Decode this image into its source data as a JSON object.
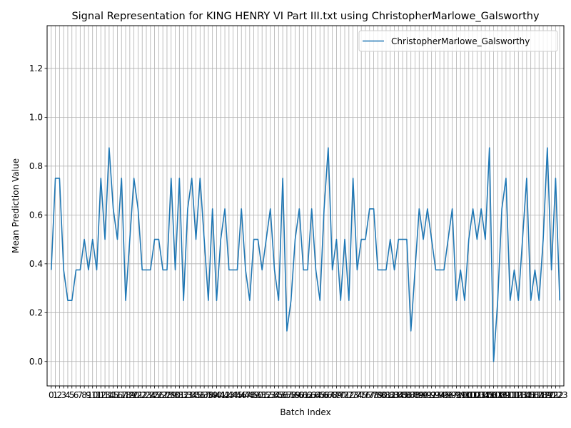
{
  "chart_data": {
    "type": "line",
    "title": "Signal Representation for KING HENRY VI Part III.txt using ChristopherMarlowe_Galsworthy",
    "xlabel": "Batch Index",
    "ylabel": "Mean Prediction Value",
    "xlim": [
      -1,
      124
    ],
    "ylim": [
      -0.1,
      1.375
    ],
    "yticks": [
      0.0,
      0.2,
      0.4,
      0.6,
      0.8,
      1.0,
      1.2
    ],
    "ytick_labels": [
      "0.0",
      "0.2",
      "0.4",
      "0.6",
      "0.8",
      "1.0",
      "1.2"
    ],
    "grid": true,
    "legend_position": "upper right",
    "series": [
      {
        "name": "ChristopherMarlowe_Galsworthy",
        "color": "#1f77b4",
        "x": [
          0,
          1,
          2,
          3,
          4,
          5,
          6,
          7,
          8,
          9,
          10,
          11,
          12,
          13,
          14,
          15,
          16,
          17,
          18,
          19,
          20,
          21,
          22,
          23,
          24,
          25,
          26,
          27,
          28,
          29,
          30,
          31,
          32,
          33,
          34,
          35,
          36,
          37,
          38,
          39,
          40,
          41,
          42,
          43,
          44,
          45,
          46,
          47,
          48,
          49,
          50,
          51,
          52,
          53,
          54,
          55,
          56,
          57,
          58,
          59,
          60,
          61,
          62,
          63,
          64,
          65,
          66,
          67,
          68,
          69,
          70,
          71,
          72,
          73,
          74,
          75,
          76,
          77,
          78,
          79,
          80,
          81,
          82,
          83,
          84,
          85,
          86,
          87,
          88,
          89,
          90,
          91,
          92,
          93,
          94,
          95,
          96,
          97,
          98,
          99,
          100,
          101,
          102,
          103,
          104,
          105,
          106,
          107,
          108,
          109,
          110,
          111,
          112,
          113,
          114,
          115,
          116,
          117,
          118,
          119,
          120,
          121,
          122,
          123
        ],
        "values": [
          0.375,
          0.75,
          0.75,
          0.375,
          0.25,
          0.25,
          0.375,
          0.375,
          0.5,
          0.375,
          0.5,
          0.375,
          0.75,
          0.5,
          0.875,
          0.625,
          0.5,
          0.75,
          0.25,
          0.5,
          0.75,
          0.625,
          0.375,
          0.375,
          0.375,
          0.5,
          0.5,
          0.375,
          0.375,
          0.75,
          0.375,
          0.75,
          0.25,
          0.625,
          0.75,
          0.5,
          0.75,
          0.5,
          0.25,
          0.625,
          0.25,
          0.5,
          0.625,
          0.375,
          0.375,
          0.375,
          0.625,
          0.375,
          0.25,
          0.5,
          0.5,
          0.375,
          0.5,
          0.625,
          0.375,
          0.25,
          0.75,
          0.125,
          0.25,
          0.5,
          0.625,
          0.375,
          0.375,
          0.625,
          0.375,
          0.25,
          0.625,
          0.875,
          0.375,
          0.5,
          0.25,
          0.5,
          0.25,
          0.75,
          0.375,
          0.5,
          0.5,
          0.625,
          0.625,
          0.375,
          0.375,
          0.375,
          0.5,
          0.375,
          0.5,
          0.5,
          0.5,
          0.125,
          0.375,
          0.625,
          0.5,
          0.625,
          0.5,
          0.375,
          0.375,
          0.375,
          0.5,
          0.625,
          0.25,
          0.375,
          0.25,
          0.5,
          0.625,
          0.5,
          0.625,
          0.5,
          0.875,
          0.0,
          0.25,
          0.625,
          0.75,
          0.25,
          0.375,
          0.25,
          0.5,
          0.75,
          0.25,
          0.375,
          0.25,
          0.5,
          0.875,
          0.375,
          0.75,
          0.25
        ]
      }
    ],
    "tail_values": [
      0.375,
      0.5,
      0.875,
      0.5,
      0.375,
      0.5,
      0.5,
      0.25,
      0.5,
      0.625,
      0.625,
      0.375,
      0.375,
      0.125,
      0.875,
      0.375,
      0.75,
      0.625,
      0.375,
      0.375,
      0.75,
      0.625,
      0.5,
      0.25,
      0.375,
      0.5,
      0.75,
      0.625,
      0.125,
      0.375,
      0.5
    ]
  }
}
